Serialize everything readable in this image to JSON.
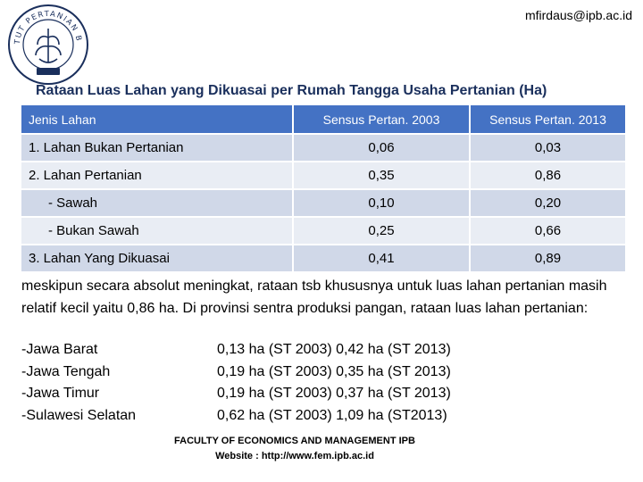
{
  "header": {
    "email": "mfirdaus@ipb.ac.id",
    "logo_text": "INSTITUT PERTANIAN BOGOR"
  },
  "title": "Rataan Luas Lahan yang Dikuasai per Rumah Tangga Usaha Pertanian (Ha)",
  "table": {
    "headers": [
      "Jenis Lahan",
      "Sensus Pertan. 2003",
      "Sensus Pertan. 2013"
    ],
    "rows": [
      {
        "label": "1. Lahan Bukan Pertanian",
        "v2003": "0,06",
        "v2013": "0,03"
      },
      {
        "label": "2. Lahan Pertanian",
        "v2003": "0,35",
        "v2013": "0,86"
      },
      {
        "label": "- Sawah",
        "v2003": "0,10",
        "v2013": "0,20"
      },
      {
        "label": "- Bukan Sawah",
        "v2003": "0,25",
        "v2013": "0,66"
      },
      {
        "label": "3. Lahan Yang Dikuasai",
        "v2003": "0,41",
        "v2013": "0,89"
      }
    ]
  },
  "body": {
    "paragraph": "meskipun secara absolut meningkat, rataan tsb khususnya untuk luas lahan pertanian masih relatif kecil yaitu 0,86 ha. Di provinsi sentra produksi pangan, rataan luas lahan pertanian:",
    "provinces": [
      {
        "name": "-Jawa Barat",
        "value": "0,13 ha (ST 2003) 0,42 ha (ST 2013)"
      },
      {
        "name": "-Jawa Tengah",
        "value": "0,19 ha (ST 2003) 0,35 ha (ST 2013)"
      },
      {
        "name": "-Jawa Timur",
        "value": "0,19 ha (ST 2003) 0,37 ha (ST 2013)"
      },
      {
        "name": "-Sulawesi Selatan",
        "value": "0,62 ha (ST 2003) 1,09 ha (ST2013)"
      }
    ]
  },
  "footer": {
    "line1": "FACULTY OF ECONOMICS AND MANAGEMENT IPB",
    "line2": "Website : http://www.fem.ipb.ac.id"
  },
  "colors": {
    "header_bg": "#4472c4",
    "row_odd": "#d0d8e8",
    "row_even": "#e9edf4",
    "title": "#1a2f5c"
  }
}
